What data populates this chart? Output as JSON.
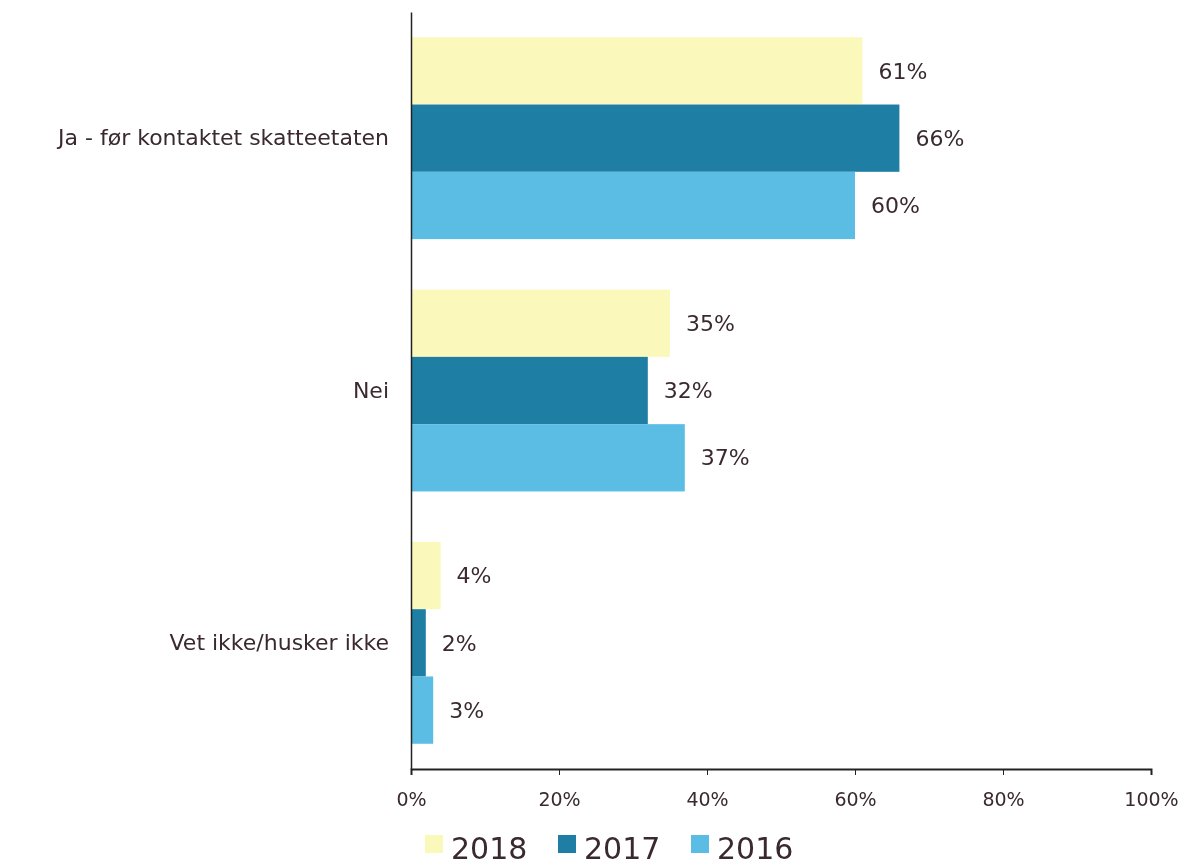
{
  "chart_data": {
    "type": "bar",
    "orientation": "horizontal",
    "categories": [
      "Ja - før kontaktet skatteetaten",
      "Nei",
      "Vet ikke/husker ikke"
    ],
    "series": [
      {
        "name": "2018",
        "color": "#fbf8bc",
        "values": [
          61,
          35,
          4
        ],
        "value_labels": [
          "61%",
          "35%",
          "4%"
        ]
      },
      {
        "name": "2017",
        "color": "#1f7ea4",
        "values": [
          66,
          32,
          2
        ],
        "value_labels": [
          "66%",
          "32%",
          "2%"
        ]
      },
      {
        "name": "2016",
        "color": "#5bbde3",
        "values": [
          60,
          37,
          3
        ],
        "value_labels": [
          "60%",
          "37%",
          "3%"
        ]
      }
    ],
    "xlim": [
      0,
      100
    ],
    "xticks": [
      {
        "value": 0,
        "label": "0%"
      },
      {
        "value": 20,
        "label": "20%"
      },
      {
        "value": 40,
        "label": "40%"
      },
      {
        "value": 60,
        "label": "60%"
      },
      {
        "value": 80,
        "label": "80%"
      },
      {
        "value": 100,
        "label": "100%"
      }
    ],
    "grid": false,
    "legend": "bottom"
  }
}
